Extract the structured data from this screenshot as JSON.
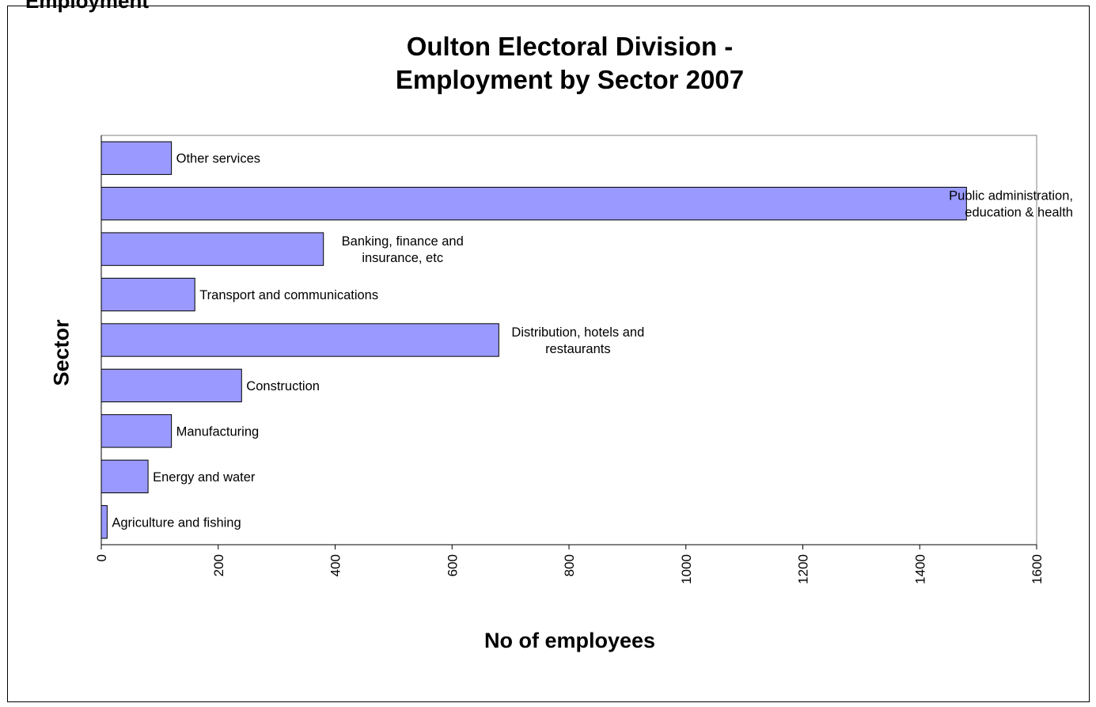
{
  "page": {
    "heading": "Employment"
  },
  "chart_data": {
    "type": "bar",
    "orientation": "horizontal",
    "title": "Oulton Electoral Division - Employment by Sector 2007",
    "title_lines": [
      "Oulton Electoral Division -",
      "Employment by Sector 2007"
    ],
    "xlabel": "No of employees",
    "ylabel": "Sector",
    "xlim": [
      0,
      1600
    ],
    "x_ticks": [
      0,
      200,
      400,
      600,
      800,
      1000,
      1200,
      1400,
      1600
    ],
    "grid": false,
    "legend": "none",
    "bar_color": "#9999ff",
    "categories": [
      "Agriculture and fishing",
      "Energy and water",
      "Manufacturing",
      "Construction",
      "Distribution, hotels and restaurants",
      "Transport and communications",
      "Banking, finance and insurance, etc",
      "Public administration, education & health",
      "Other services"
    ],
    "label_lines": [
      [
        "Agriculture and fishing"
      ],
      [
        "Energy and water"
      ],
      [
        "Manufacturing"
      ],
      [
        "Construction"
      ],
      [
        "Distribution, hotels and",
        "restaurants"
      ],
      [
        "Transport and communications"
      ],
      [
        "Banking, finance and",
        "insurance, etc"
      ],
      [
        "Public administration,",
        "education & health"
      ],
      [
        "Other services"
      ]
    ],
    "values": [
      10,
      80,
      120,
      240,
      680,
      160,
      380,
      1480,
      120
    ]
  }
}
